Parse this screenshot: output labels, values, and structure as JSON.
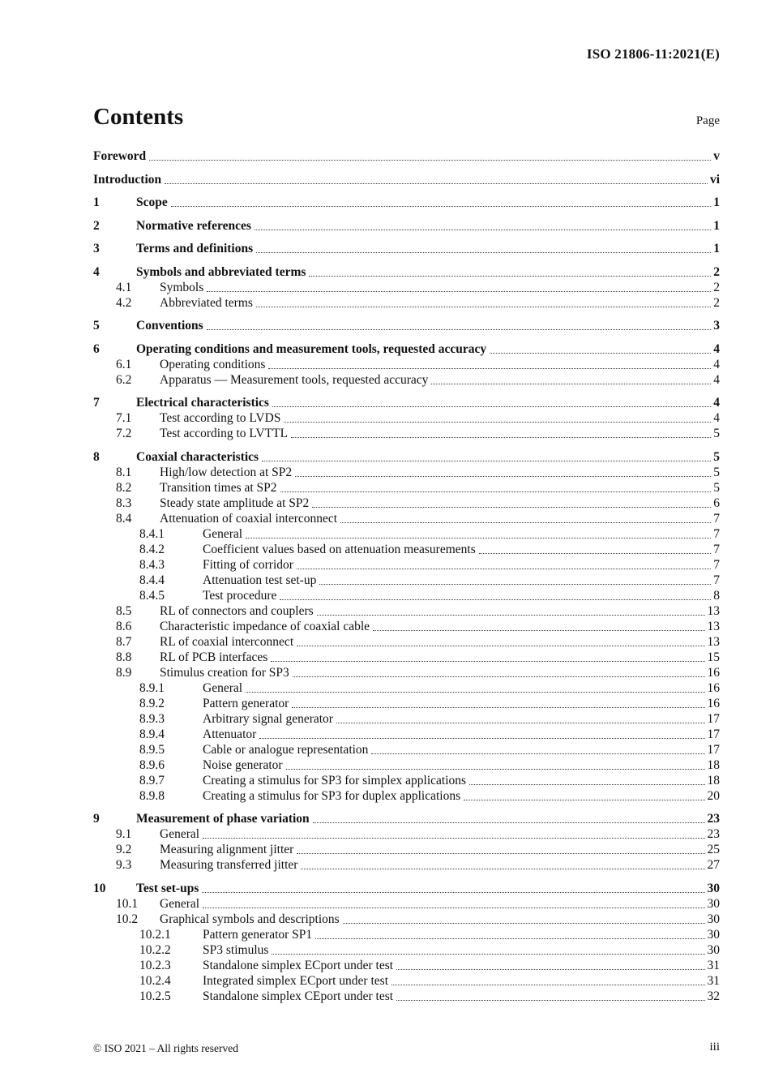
{
  "page": {
    "header": "ISO 21806-11:2021(E)",
    "contents_title": "Contents",
    "page_column_label": "Page",
    "footer_left": "© ISO 2021 – All rights reserved",
    "footer_right": "iii"
  },
  "toc": {
    "front_matter": [
      {
        "title": "Foreword",
        "page": "v"
      },
      {
        "title": "Introduction",
        "page": "vi"
      }
    ],
    "entries": [
      {
        "num": "1",
        "title": "Scope",
        "page": "1"
      },
      {
        "num": "2",
        "title": "Normative references",
        "page": "1"
      },
      {
        "num": "3",
        "title": "Terms and definitions",
        "page": "1"
      },
      {
        "num": "4",
        "title": "Symbols and abbreviated terms",
        "page": "2"
      },
      {
        "num": "4.1",
        "title": "Symbols",
        "page": "2"
      },
      {
        "num": "4.2",
        "title": "Abbreviated terms",
        "page": "2"
      },
      {
        "num": "5",
        "title": "Conventions",
        "page": "3"
      },
      {
        "num": "6",
        "title": "Operating conditions and measurement tools, requested accuracy",
        "page": "4"
      },
      {
        "num": "6.1",
        "title": "Operating conditions",
        "page": "4"
      },
      {
        "num": "6.2",
        "title": "Apparatus — Measurement tools, requested accuracy",
        "page": "4"
      },
      {
        "num": "7",
        "title": "Electrical characteristics",
        "page": "4"
      },
      {
        "num": "7.1",
        "title": "Test according to LVDS",
        "page": "4"
      },
      {
        "num": "7.2",
        "title": "Test according to LVTTL",
        "page": "5"
      },
      {
        "num": "8",
        "title": "Coaxial characteristics",
        "page": "5"
      },
      {
        "num": "8.1",
        "title": "High/low detection at SP2",
        "page": "5"
      },
      {
        "num": "8.2",
        "title": "Transition times at SP2",
        "page": "5"
      },
      {
        "num": "8.3",
        "title": "Steady state amplitude at SP2",
        "page": "6"
      },
      {
        "num": "8.4",
        "title": "Attenuation of coaxial interconnect",
        "page": "7"
      },
      {
        "num": "8.4.1",
        "title": "General",
        "page": "7"
      },
      {
        "num": "8.4.2",
        "title": "Coefficient values based on attenuation measurements",
        "page": "7"
      },
      {
        "num": "8.4.3",
        "title": "Fitting of corridor",
        "page": "7"
      },
      {
        "num": "8.4.4",
        "title": "Attenuation test set-up",
        "page": "7"
      },
      {
        "num": "8.4.5",
        "title": "Test procedure",
        "page": "8"
      },
      {
        "num": "8.5",
        "title": "RL of connectors and couplers",
        "page": "13"
      },
      {
        "num": "8.6",
        "title": "Characteristic impedance of coaxial cable",
        "page": "13"
      },
      {
        "num": "8.7",
        "title": "RL of coaxial interconnect",
        "page": "13"
      },
      {
        "num": "8.8",
        "title": "RL of PCB interfaces",
        "page": "15"
      },
      {
        "num": "8.9",
        "title": "Stimulus creation for SP3",
        "page": "16"
      },
      {
        "num": "8.9.1",
        "title": "General",
        "page": "16"
      },
      {
        "num": "8.9.2",
        "title": "Pattern generator",
        "page": "16"
      },
      {
        "num": "8.9.3",
        "title": "Arbitrary signal generator",
        "page": "17"
      },
      {
        "num": "8.9.4",
        "title": "Attenuator",
        "page": "17"
      },
      {
        "num": "8.9.5",
        "title": "Cable or analogue representation",
        "page": "17"
      },
      {
        "num": "8.9.6",
        "title": "Noise generator",
        "page": "18"
      },
      {
        "num": "8.9.7",
        "title": "Creating a stimulus for SP3 for simplex applications",
        "page": "18"
      },
      {
        "num": "8.9.8",
        "title": "Creating a stimulus for SP3 for duplex applications",
        "page": "20"
      },
      {
        "num": "9",
        "title": "Measurement of phase variation",
        "page": "23"
      },
      {
        "num": "9.1",
        "title": "General",
        "page": "23"
      },
      {
        "num": "9.2",
        "title": "Measuring alignment jitter",
        "page": "25"
      },
      {
        "num": "9.3",
        "title": "Measuring transferred jitter",
        "page": "27"
      },
      {
        "num": "10",
        "title": "Test set-ups",
        "page": "30"
      },
      {
        "num": "10.1",
        "title": "General",
        "page": "30"
      },
      {
        "num": "10.2",
        "title": "Graphical symbols and descriptions",
        "page": "30"
      },
      {
        "num": "10.2.1",
        "title": "Pattern generator SP1",
        "page": "30"
      },
      {
        "num": "10.2.2",
        "title": "SP3 stimulus",
        "page": "30"
      },
      {
        "num": "10.2.3",
        "title": "Standalone simplex ECport under test",
        "page": "31"
      },
      {
        "num": "10.2.4",
        "title": "Integrated simplex ECport under test",
        "page": "31"
      },
      {
        "num": "10.2.5",
        "title": "Standalone simplex CEport under test",
        "page": "32"
      }
    ]
  }
}
